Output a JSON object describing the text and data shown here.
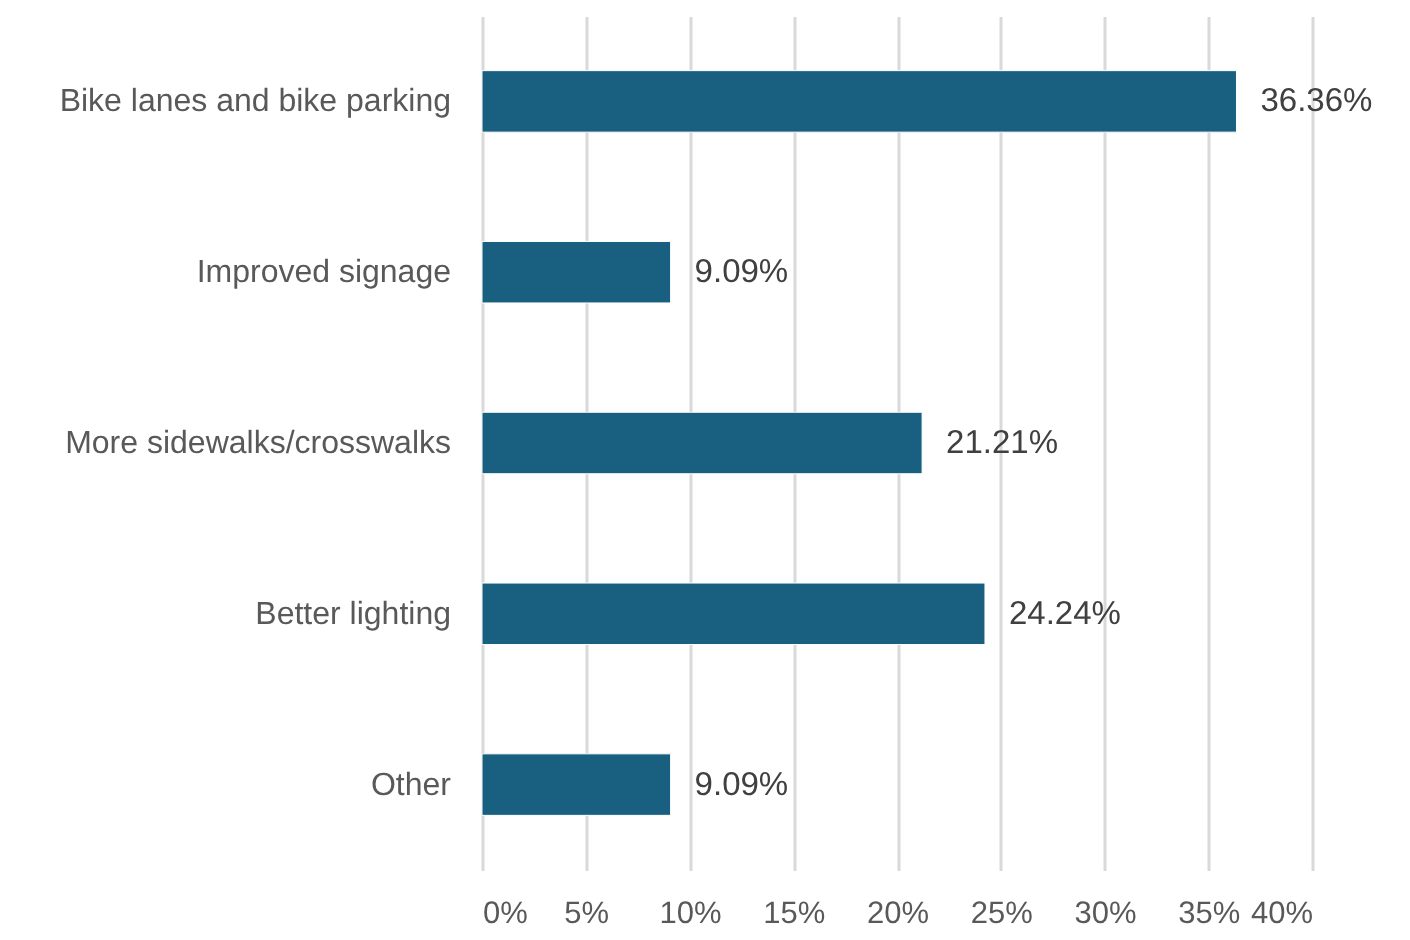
{
  "chart_data": {
    "type": "bar",
    "orientation": "horizontal",
    "categories": [
      "Bike lanes and bike parking",
      "Improved signage",
      "More sidewalks/crosswalks",
      "Better lighting",
      "Other"
    ],
    "values": [
      36.36,
      9.09,
      21.21,
      24.24,
      9.09
    ],
    "value_labels": [
      "36.36%",
      "9.09%",
      "21.21%",
      "24.24%",
      "9.09%"
    ],
    "color": "#185f80",
    "xlim": [
      0,
      40
    ],
    "xticks": [
      {
        "value": 0,
        "label": "0%"
      },
      {
        "value": 5,
        "label": "5%"
      },
      {
        "value": 10,
        "label": "10%"
      },
      {
        "value": 15,
        "label": "15%"
      },
      {
        "value": 20,
        "label": "20%"
      },
      {
        "value": 25,
        "label": "25%"
      },
      {
        "value": 30,
        "label": "30%"
      },
      {
        "value": 35,
        "label": "35%"
      },
      {
        "value": 40,
        "label": "40%"
      }
    ],
    "grid": "x"
  }
}
